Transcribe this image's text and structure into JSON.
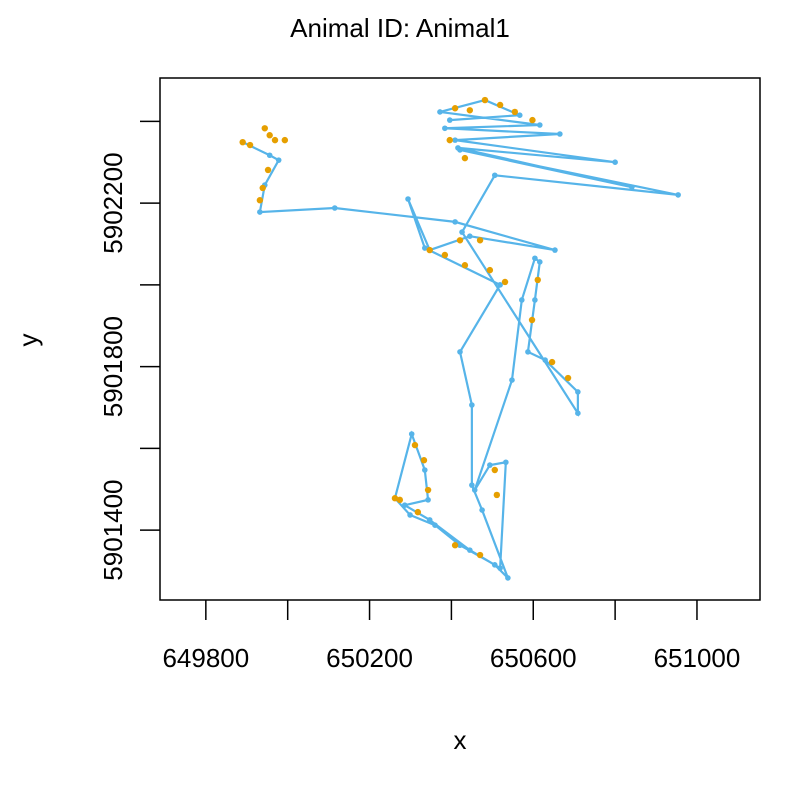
{
  "chart_data": {
    "type": "line",
    "title": "Animal ID: Animal1",
    "xlabel": "x",
    "ylabel": "y",
    "xlim": [
      649688,
      651154
    ],
    "ylim": [
      5901229,
      5902506
    ],
    "xticks": [
      649800,
      {
        "value": 650000,
        "label": null
      },
      650200,
      {
        "value": 650400,
        "label": null
      },
      650600,
      {
        "value": 650800,
        "label": null
      },
      651000
    ],
    "yticks": [
      5901400,
      {
        "value": 5901600,
        "label": null
      },
      5901800,
      {
        "value": 5902000,
        "label": null
      },
      5902200,
      {
        "value": 5902400,
        "label": null
      }
    ],
    "series": [
      {
        "color": "#56B4E9",
        "line": true,
        "x": [
          649890,
          649956,
          649978,
          649944,
          649932,
          650115,
          650409,
          650653,
          650445,
          650347,
          650294,
          650335,
          650519,
          650421,
          650450,
          650450,
          650475,
          650538,
          650506,
          650421,
          650360,
          650299,
          650262,
          650303,
          650335,
          650343,
          650286,
          650347,
          650445,
          650519,
          650533,
          650494,
          650457,
          650548,
          650572,
          650604,
          650616,
          650604,
          650587,
          650629,
          650709,
          650709,
          650426,
          650506,
          650954,
          650421,
          650841,
          650416,
          650800,
          650409,
          650665,
          650384,
          650616,
          650372,
          650482,
          650567,
          650396
        ],
        "y": [
          5902349,
          5902317,
          5902305,
          5902244,
          5902178,
          5902188,
          5902154,
          5902085,
          5902119,
          5902085,
          5902210,
          5902090,
          5902000,
          5901836,
          5901706,
          5901510,
          5901449,
          5901283,
          5901315,
          5901363,
          5901412,
          5901437,
          5901478,
          5901635,
          5901547,
          5901474,
          5901461,
          5901425,
          5901351,
          5901307,
          5901566,
          5901559,
          5901498,
          5901767,
          5901963,
          5902065,
          5902056,
          5901963,
          5901836,
          5901816,
          5901738,
          5901686,
          5902129,
          5902268,
          5902220,
          5902330,
          5902239,
          5902335,
          5902300,
          5902354,
          5902369,
          5902383,
          5902391,
          5902423,
          5902452,
          5902415,
          5902403
        ]
      },
      {
        "color": "#E69F00",
        "line": false,
        "x": [
          649890,
          649908,
          649944,
          649956,
          649969,
          649993,
          649952,
          649939,
          649932,
          650409,
          650445,
          650482,
          650519,
          650555,
          650598,
          650396,
          650433,
          650347,
          650384,
          650421,
          650470,
          650494,
          650531,
          650433,
          650611,
          650597,
          650646,
          650685,
          650262,
          650274,
          650318,
          650333,
          650343,
          650311,
          650409,
          650470,
          650506,
          650511
        ],
        "y": [
          5902349,
          5902342,
          5902383,
          5902366,
          5902354,
          5902354,
          5902281,
          5902237,
          5902207,
          5902432,
          5902427,
          5902452,
          5902440,
          5902423,
          5902403,
          5902354,
          5902310,
          5902085,
          5902073,
          5902109,
          5902109,
          5902036,
          5902007,
          5902048,
          5902012,
          5901914,
          5901811,
          5901772,
          5901478,
          5901474,
          5901444,
          5901571,
          5901498,
          5901608,
          5901363,
          5901339,
          5901547,
          5901486
        ]
      }
    ]
  }
}
